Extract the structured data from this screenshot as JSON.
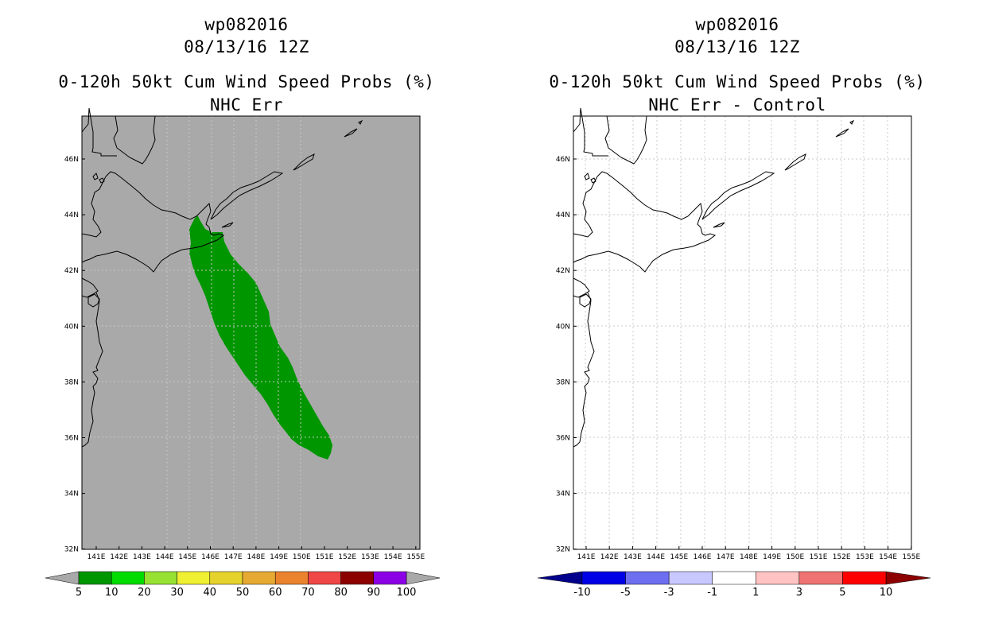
{
  "left_panel": {
    "storm_id": "wp082016",
    "datetime": "08/13/16 12Z",
    "product": "0-120h 50kt Cum Wind Speed Probs (%)",
    "subtitle": "NHC Err",
    "colors": {
      "background": "#a9a9a9",
      "swath": "#009600"
    },
    "colorbar": {
      "labels": [
        "5",
        "10",
        "20",
        "30",
        "40",
        "50",
        "60",
        "70",
        "80",
        "90",
        "100"
      ],
      "colors": [
        "#009600",
        "#00dc00",
        "#96e132",
        "#f0f032",
        "#e6d22d",
        "#e6aa32",
        "#eb822d",
        "#f04646",
        "#8c0000",
        "#8c00e6"
      ],
      "end_color": "#a9a9a9"
    }
  },
  "right_panel": {
    "storm_id": "wp082016",
    "datetime": "08/13/16 12Z",
    "product": "0-120h 50kt Cum Wind Speed Probs (%)",
    "subtitle": "NHC Err - Control",
    "colors": {
      "background": "#ffffff"
    },
    "colorbar": {
      "labels": [
        "-10",
        "-5",
        "-3",
        "-1",
        "1",
        "3",
        "5",
        "10"
      ],
      "colors": [
        "#0000e6",
        "#6e6ef0",
        "#c8c8ff",
        "#ffffff",
        "#ffc3c3",
        "#f07373",
        "#ff0000"
      ],
      "low_color": "#00008c",
      "high_color": "#8c0000"
    }
  },
  "map": {
    "lon_labels": [
      "141E",
      "142E",
      "143E",
      "144E",
      "145E",
      "146E",
      "147E",
      "148E",
      "149E",
      "150E",
      "151E",
      "152E",
      "153E",
      "154E",
      "155E"
    ],
    "lat_labels": [
      "46N",
      "44N",
      "42N",
      "40N",
      "38N",
      "36N",
      "34N",
      "32N"
    ]
  }
}
